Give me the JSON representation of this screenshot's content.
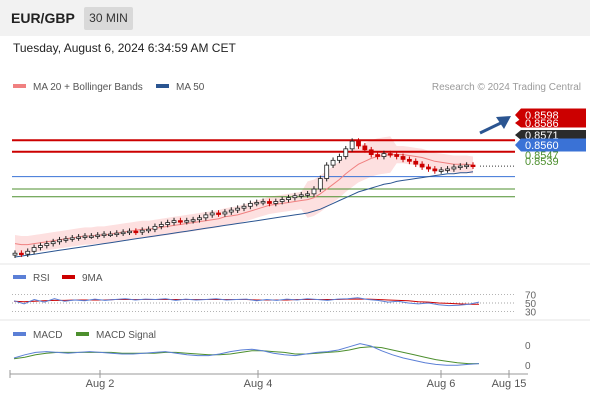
{
  "header": {
    "instrument": "EUR/GBP",
    "timeframe": "30 MIN",
    "datetime": "Tuesday, August 6, 2024 6:34:59 AM CET"
  },
  "colors": {
    "ma20": "#f08080",
    "ma50": "#2b5591",
    "bollinger": "#fde0e0",
    "resistance": "#cc0000",
    "pivot": "#3a72d6",
    "support": "#4d8f2e",
    "up_candle": "#ffffff",
    "down_candle": "#cc0000",
    "rsi": "#5b7fd6",
    "rsi_ma": "#cc0000",
    "macd": "#5b7fd6",
    "macd_signal": "#4d8f2e",
    "arrow": "#2b5591"
  },
  "chart_data": [
    {
      "type": "candlestick",
      "title": "",
      "legend": [
        {
          "name": "MA 20 + Bollinger Bands",
          "color": "#f08080"
        },
        {
          "name": "MA 50",
          "color": "#2b5591"
        }
      ],
      "copyright": "Research © 2024 Trading Central",
      "x_ticks": [
        "Aug 2",
        "Aug 4",
        "Aug 6",
        "Aug 15"
      ],
      "ylim": [
        0.8475,
        0.864
      ],
      "levels": [
        {
          "label": "0.8598",
          "value": 0.8598,
          "kind": "resistance"
        },
        {
          "label": "0.8586",
          "value": 0.8586,
          "kind": "resistance"
        },
        {
          "label": "0.8571",
          "value": 0.8571,
          "kind": "last"
        },
        {
          "label": "0.8560",
          "value": 0.856,
          "kind": "pivot"
        },
        {
          "label": "0.8547",
          "value": 0.8547,
          "kind": "support"
        },
        {
          "label": "0.8539",
          "value": 0.8539,
          "kind": "support"
        }
      ],
      "close": [
        0.848,
        0.8479,
        0.8482,
        0.8486,
        0.8488,
        0.849,
        0.8492,
        0.8494,
        0.8495,
        0.8496,
        0.8497,
        0.8498,
        0.8498,
        0.8499,
        0.85,
        0.85,
        0.8501,
        0.8502,
        0.8503,
        0.8502,
        0.8504,
        0.8505,
        0.8508,
        0.851,
        0.8512,
        0.8514,
        0.8513,
        0.8514,
        0.8515,
        0.8517,
        0.852,
        0.8522,
        0.8521,
        0.8523,
        0.8525,
        0.8527,
        0.8529,
        0.8532,
        0.8533,
        0.8534,
        0.8532,
        0.8534,
        0.8536,
        0.8538,
        0.854,
        0.8541,
        0.8542,
        0.8547,
        0.8558,
        0.8572,
        0.8577,
        0.8581,
        0.8589,
        0.8597,
        0.8592,
        0.8588,
        0.8583,
        0.8581,
        0.8584,
        0.8583,
        0.8581,
        0.8578,
        0.8576,
        0.8573,
        0.857,
        0.8568,
        0.8566,
        0.8567,
        0.8568,
        0.857,
        0.8571,
        0.8572,
        0.8571
      ],
      "ma20": [
        0.849,
        0.8489,
        0.8489,
        0.849,
        0.8491,
        0.8492,
        0.8493,
        0.8494,
        0.8495,
        0.8496,
        0.8497,
        0.8498,
        0.8498,
        0.8499,
        0.8499,
        0.85,
        0.8501,
        0.8502,
        0.8503,
        0.8504,
        0.8505,
        0.8505,
        0.8506,
        0.8507,
        0.8508,
        0.8509,
        0.851,
        0.8511,
        0.8512,
        0.8513,
        0.8514,
        0.8515,
        0.8516,
        0.8518,
        0.8519,
        0.852,
        0.8522,
        0.8524,
        0.8526,
        0.8528,
        0.853,
        0.8531,
        0.8532,
        0.8533,
        0.8534,
        0.8535,
        0.8536,
        0.8538,
        0.8542,
        0.8547,
        0.8552,
        0.8557,
        0.8563,
        0.8568,
        0.8573,
        0.8576,
        0.8579,
        0.8581,
        0.8582,
        0.8583,
        0.8583,
        0.8583,
        0.8582,
        0.8581,
        0.858,
        0.8578,
        0.8576,
        0.8575,
        0.8574,
        0.8573,
        0.8573,
        0.8573,
        0.8572
      ],
      "ma50": [
        0.8476,
        0.8477,
        0.8478,
        0.8479,
        0.848,
        0.8481,
        0.8482,
        0.8483,
        0.8484,
        0.8485,
        0.8486,
        0.8487,
        0.8488,
        0.8489,
        0.849,
        0.8491,
        0.8492,
        0.8493,
        0.8494,
        0.8495,
        0.8496,
        0.8497,
        0.8498,
        0.8499,
        0.85,
        0.8501,
        0.8502,
        0.8503,
        0.8504,
        0.8505,
        0.8506,
        0.8507,
        0.8508,
        0.8509,
        0.851,
        0.8511,
        0.8512,
        0.8513,
        0.8514,
        0.8515,
        0.8516,
        0.8517,
        0.8518,
        0.8519,
        0.852,
        0.8521,
        0.8522,
        0.8524,
        0.8526,
        0.8529,
        0.8532,
        0.8535,
        0.8538,
        0.8541,
        0.8544,
        0.8546,
        0.8548,
        0.855,
        0.8552,
        0.8553,
        0.8555,
        0.8556,
        0.8557,
        0.8558,
        0.8559,
        0.856,
        0.8561,
        0.8562,
        0.8563,
        0.8563,
        0.8564,
        0.8564,
        0.8565
      ]
    },
    {
      "type": "line",
      "title": "",
      "legend": [
        {
          "name": "RSI",
          "color": "#5b7fd6"
        },
        {
          "name": "9MA",
          "color": "#cc0000"
        }
      ],
      "y_ticks": [
        "70",
        "50",
        "30"
      ],
      "ylim": [
        20,
        80
      ],
      "series": [
        {
          "name": "RSI",
          "values": [
            55,
            48,
            58,
            52,
            60,
            54,
            57,
            55,
            59,
            56,
            58,
            60,
            57,
            59,
            58,
            60,
            56,
            59,
            57,
            58,
            60,
            57,
            58,
            59,
            55,
            58,
            56,
            59,
            57,
            60,
            58,
            56,
            59,
            60,
            62,
            58,
            56,
            52,
            54,
            50,
            48,
            50,
            46,
            44,
            45,
            47,
            52
          ]
        },
        {
          "name": "9MA",
          "values": [
            54,
            53,
            54,
            55,
            56,
            56,
            57,
            57,
            57,
            57,
            58,
            58,
            58,
            58,
            58,
            58,
            58,
            58,
            58,
            58,
            58,
            58,
            58,
            58,
            57,
            57,
            57,
            57,
            58,
            58,
            58,
            58,
            58,
            59,
            59,
            59,
            58,
            57,
            56,
            55,
            53,
            52,
            50,
            49,
            48,
            47,
            47
          ]
        }
      ]
    },
    {
      "type": "line",
      "title": "",
      "legend": [
        {
          "name": "MACD",
          "color": "#5b7fd6"
        },
        {
          "name": "MACD Signal",
          "color": "#4d8f2e"
        }
      ],
      "y_ticks": [
        "0",
        "0"
      ],
      "ylim": [
        -0.001,
        0.0025
      ],
      "series": [
        {
          "name": "MACD",
          "values": [
            0.0005,
            0.0009,
            0.0012,
            0.0013,
            0.0012,
            0.0011,
            0.0012,
            0.0013,
            0.0012,
            0.0011,
            0.001,
            0.001,
            0.0011,
            0.0012,
            0.0013,
            0.0011,
            0.0009,
            0.0008,
            0.0008,
            0.001,
            0.0013,
            0.0015,
            0.0016,
            0.0014,
            0.0011,
            0.0009,
            0.0008,
            0.001,
            0.0012,
            0.0013,
            0.0015,
            0.0019,
            0.0023,
            0.002,
            0.0014,
            0.0009,
            0.0005,
            0.0002,
            -0.0001,
            -0.0003,
            -0.0004,
            -0.0004,
            -0.0003,
            -0.0002
          ]
        },
        {
          "name": "MACD Signal",
          "values": [
            0.0004,
            0.0006,
            0.0009,
            0.0011,
            0.0012,
            0.0012,
            0.0012,
            0.0012,
            0.0012,
            0.0012,
            0.0011,
            0.0011,
            0.0011,
            0.0011,
            0.0012,
            0.0012,
            0.0011,
            0.001,
            0.0009,
            0.0009,
            0.001,
            0.0012,
            0.0014,
            0.0014,
            0.0013,
            0.0012,
            0.001,
            0.001,
            0.0011,
            0.0012,
            0.0013,
            0.0015,
            0.0018,
            0.0019,
            0.0018,
            0.0015,
            0.0012,
            0.0009,
            0.0006,
            0.0003,
            0.0001,
            -0.0001,
            -0.0002,
            -0.0002
          ]
        }
      ]
    }
  ]
}
